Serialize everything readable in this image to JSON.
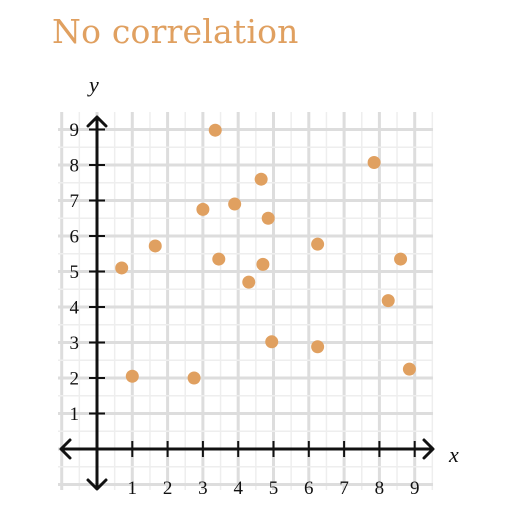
{
  "chart_data": {
    "type": "scatter",
    "title": "No correlation",
    "xlabel": "x",
    "ylabel": "y",
    "xlim": [
      0,
      9
    ],
    "ylim": [
      0,
      9
    ],
    "x_ticks": [
      "1",
      "2",
      "3",
      "4",
      "5",
      "6",
      "7",
      "8",
      "9"
    ],
    "y_ticks": [
      "1",
      "2",
      "3",
      "4",
      "5",
      "6",
      "7",
      "8",
      "9"
    ],
    "grid": true,
    "colors": {
      "points": "#e0a060",
      "title": "#e0a060",
      "grid": "#dddddd",
      "axis": "#111111"
    },
    "points": [
      {
        "x": 0.7,
        "y": 5.1
      },
      {
        "x": 1.0,
        "y": 2.05
      },
      {
        "x": 1.65,
        "y": 5.72
      },
      {
        "x": 2.75,
        "y": 2.0
      },
      {
        "x": 3.0,
        "y": 6.75
      },
      {
        "x": 3.35,
        "y": 8.98
      },
      {
        "x": 3.45,
        "y": 5.35
      },
      {
        "x": 3.9,
        "y": 6.9
      },
      {
        "x": 4.3,
        "y": 4.7
      },
      {
        "x": 4.65,
        "y": 7.6
      },
      {
        "x": 4.7,
        "y": 5.2
      },
      {
        "x": 4.85,
        "y": 6.5
      },
      {
        "x": 4.95,
        "y": 3.02
      },
      {
        "x": 6.25,
        "y": 5.77
      },
      {
        "x": 6.25,
        "y": 2.88
      },
      {
        "x": 7.85,
        "y": 8.07
      },
      {
        "x": 8.25,
        "y": 4.18
      },
      {
        "x": 8.6,
        "y": 5.35
      },
      {
        "x": 8.85,
        "y": 2.25
      }
    ]
  }
}
